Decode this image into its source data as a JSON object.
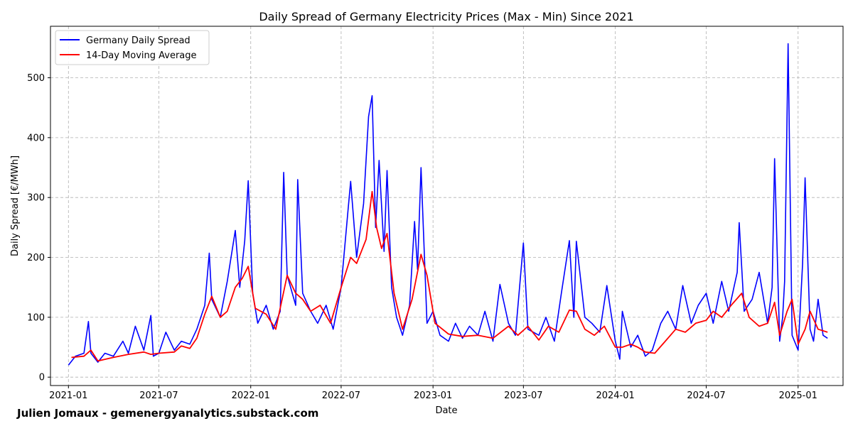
{
  "chart_data": {
    "type": "line",
    "title": "Daily Spread of Germany Electricity Prices (Max - Min) Since 2021",
    "xlabel": "Date",
    "ylabel": "Daily Spread [€/MWh]",
    "xlim": [
      "2020-11-26",
      "2025-04-01"
    ],
    "ylim": [
      -14,
      586
    ],
    "grid": true,
    "legend_position": "top-left",
    "x_ticks": [
      {
        "date": "2021-01-01",
        "label": "2021-01"
      },
      {
        "date": "2021-07-01",
        "label": "2021-07"
      },
      {
        "date": "2022-01-01",
        "label": "2022-01"
      },
      {
        "date": "2022-07-01",
        "label": "2022-07"
      },
      {
        "date": "2023-01-01",
        "label": "2023-01"
      },
      {
        "date": "2023-07-01",
        "label": "2023-07"
      },
      {
        "date": "2024-01-01",
        "label": "2024-01"
      },
      {
        "date": "2024-07-01",
        "label": "2024-07"
      },
      {
        "date": "2025-01-01",
        "label": "2025-01"
      }
    ],
    "y_ticks": [
      0,
      100,
      200,
      300,
      400,
      500
    ],
    "series": [
      {
        "name": "Germany Daily Spread",
        "color": "#0000ff",
        "points": [
          [
            "2021-01-01",
            20
          ],
          [
            "2021-01-15",
            35
          ],
          [
            "2021-02-01",
            40
          ],
          [
            "2021-02-10",
            93
          ],
          [
            "2021-02-15",
            40
          ],
          [
            "2021-03-01",
            25
          ],
          [
            "2021-03-15",
            40
          ],
          [
            "2021-04-01",
            35
          ],
          [
            "2021-04-20",
            60
          ],
          [
            "2021-05-01",
            40
          ],
          [
            "2021-05-15",
            85
          ],
          [
            "2021-06-01",
            45
          ],
          [
            "2021-06-15",
            103
          ],
          [
            "2021-06-20",
            35
          ],
          [
            "2021-07-01",
            40
          ],
          [
            "2021-07-15",
            75
          ],
          [
            "2021-08-01",
            45
          ],
          [
            "2021-08-15",
            60
          ],
          [
            "2021-09-01",
            55
          ],
          [
            "2021-09-15",
            80
          ],
          [
            "2021-10-01",
            120
          ],
          [
            "2021-10-10",
            207
          ],
          [
            "2021-10-15",
            130
          ],
          [
            "2021-11-01",
            100
          ],
          [
            "2021-11-15",
            160
          ],
          [
            "2021-12-01",
            245
          ],
          [
            "2021-12-10",
            150
          ],
          [
            "2021-12-20",
            228
          ],
          [
            "2021-12-27",
            328
          ],
          [
            "2022-01-05",
            140
          ],
          [
            "2022-01-15",
            90
          ],
          [
            "2022-02-01",
            120
          ],
          [
            "2022-02-15",
            80
          ],
          [
            "2022-03-01",
            110
          ],
          [
            "2022-03-08",
            342
          ],
          [
            "2022-03-15",
            170
          ],
          [
            "2022-04-01",
            120
          ],
          [
            "2022-04-05",
            330
          ],
          [
            "2022-04-15",
            140
          ],
          [
            "2022-05-01",
            110
          ],
          [
            "2022-05-15",
            90
          ],
          [
            "2022-06-01",
            120
          ],
          [
            "2022-06-15",
            80
          ],
          [
            "2022-07-01",
            150
          ],
          [
            "2022-07-15",
            280
          ],
          [
            "2022-07-20",
            327
          ],
          [
            "2022-08-01",
            200
          ],
          [
            "2022-08-15",
            290
          ],
          [
            "2022-08-25",
            435
          ],
          [
            "2022-09-01",
            470
          ],
          [
            "2022-09-08",
            250
          ],
          [
            "2022-09-15",
            362
          ],
          [
            "2022-09-25",
            210
          ],
          [
            "2022-10-01",
            345
          ],
          [
            "2022-10-10",
            150
          ],
          [
            "2022-10-20",
            100
          ],
          [
            "2022-11-01",
            70
          ],
          [
            "2022-11-15",
            120
          ],
          [
            "2022-11-25",
            260
          ],
          [
            "2022-12-01",
            180
          ],
          [
            "2022-12-08",
            350
          ],
          [
            "2022-12-12",
            263
          ],
          [
            "2022-12-20",
            90
          ],
          [
            "2023-01-01",
            110
          ],
          [
            "2023-01-15",
            70
          ],
          [
            "2023-02-01",
            60
          ],
          [
            "2023-02-15",
            90
          ],
          [
            "2023-03-01",
            65
          ],
          [
            "2023-03-15",
            85
          ],
          [
            "2023-04-01",
            70
          ],
          [
            "2023-04-15",
            110
          ],
          [
            "2023-05-01",
            60
          ],
          [
            "2023-05-15",
            155
          ],
          [
            "2023-06-01",
            90
          ],
          [
            "2023-06-15",
            70
          ],
          [
            "2023-07-01",
            224
          ],
          [
            "2023-07-10",
            80
          ],
          [
            "2023-08-01",
            70
          ],
          [
            "2023-08-15",
            100
          ],
          [
            "2023-09-01",
            60
          ],
          [
            "2023-09-15",
            140
          ],
          [
            "2023-10-01",
            228
          ],
          [
            "2023-10-10",
            100
          ],
          [
            "2023-10-15",
            227
          ],
          [
            "2023-11-01",
            100
          ],
          [
            "2023-11-15",
            90
          ],
          [
            "2023-12-01",
            75
          ],
          [
            "2023-12-15",
            153
          ],
          [
            "2024-01-01",
            60
          ],
          [
            "2024-01-10",
            30
          ],
          [
            "2024-01-15",
            110
          ],
          [
            "2024-02-01",
            50
          ],
          [
            "2024-02-15",
            70
          ],
          [
            "2024-03-01",
            35
          ],
          [
            "2024-03-15",
            45
          ],
          [
            "2024-04-01",
            90
          ],
          [
            "2024-04-15",
            110
          ],
          [
            "2024-05-01",
            80
          ],
          [
            "2024-05-15",
            153
          ],
          [
            "2024-06-01",
            90
          ],
          [
            "2024-06-15",
            120
          ],
          [
            "2024-07-01",
            140
          ],
          [
            "2024-07-15",
            90
          ],
          [
            "2024-08-01",
            160
          ],
          [
            "2024-08-15",
            110
          ],
          [
            "2024-09-01",
            175
          ],
          [
            "2024-09-05",
            258
          ],
          [
            "2024-09-15",
            110
          ],
          [
            "2024-10-01",
            130
          ],
          [
            "2024-10-15",
            175
          ],
          [
            "2024-11-01",
            90
          ],
          [
            "2024-11-10",
            150
          ],
          [
            "2024-11-15",
            365
          ],
          [
            "2024-11-25",
            60
          ],
          [
            "2024-12-01",
            100
          ],
          [
            "2024-12-05",
            160
          ],
          [
            "2024-12-12",
            557
          ],
          [
            "2024-12-20",
            70
          ],
          [
            "2025-01-01",
            45
          ],
          [
            "2025-01-10",
            190
          ],
          [
            "2025-01-15",
            333
          ],
          [
            "2025-01-25",
            80
          ],
          [
            "2025-02-01",
            60
          ],
          [
            "2025-02-10",
            130
          ],
          [
            "2025-02-20",
            70
          ],
          [
            "2025-03-01",
            65
          ]
        ]
      },
      {
        "name": "14-Day Moving Average",
        "color": "#ff0000",
        "points": [
          [
            "2021-01-07",
            33
          ],
          [
            "2021-02-01",
            35
          ],
          [
            "2021-02-15",
            45
          ],
          [
            "2021-03-01",
            27
          ],
          [
            "2021-04-01",
            33
          ],
          [
            "2021-05-01",
            38
          ],
          [
            "2021-06-01",
            42
          ],
          [
            "2021-06-15",
            38
          ],
          [
            "2021-07-01",
            40
          ],
          [
            "2021-08-01",
            42
          ],
          [
            "2021-08-15",
            52
          ],
          [
            "2021-09-01",
            48
          ],
          [
            "2021-09-15",
            65
          ],
          [
            "2021-10-01",
            105
          ],
          [
            "2021-10-15",
            135
          ],
          [
            "2021-11-01",
            100
          ],
          [
            "2021-11-15",
            110
          ],
          [
            "2021-12-01",
            150
          ],
          [
            "2021-12-15",
            165
          ],
          [
            "2021-12-27",
            185
          ],
          [
            "2022-01-10",
            115
          ],
          [
            "2022-02-01",
            105
          ],
          [
            "2022-02-20",
            80
          ],
          [
            "2022-03-15",
            170
          ],
          [
            "2022-04-01",
            140
          ],
          [
            "2022-04-15",
            130
          ],
          [
            "2022-05-01",
            110
          ],
          [
            "2022-05-20",
            120
          ],
          [
            "2022-06-10",
            90
          ],
          [
            "2022-07-01",
            150
          ],
          [
            "2022-07-20",
            200
          ],
          [
            "2022-08-01",
            190
          ],
          [
            "2022-08-20",
            230
          ],
          [
            "2022-09-01",
            310
          ],
          [
            "2022-09-10",
            250
          ],
          [
            "2022-09-20",
            215
          ],
          [
            "2022-10-01",
            240
          ],
          [
            "2022-10-15",
            140
          ],
          [
            "2022-11-01",
            80
          ],
          [
            "2022-11-20",
            130
          ],
          [
            "2022-12-08",
            205
          ],
          [
            "2022-12-20",
            170
          ],
          [
            "2023-01-05",
            90
          ],
          [
            "2023-02-01",
            72
          ],
          [
            "2023-03-01",
            68
          ],
          [
            "2023-04-01",
            70
          ],
          [
            "2023-05-01",
            65
          ],
          [
            "2023-06-01",
            85
          ],
          [
            "2023-06-20",
            70
          ],
          [
            "2023-07-10",
            85
          ],
          [
            "2023-08-01",
            62
          ],
          [
            "2023-08-20",
            85
          ],
          [
            "2023-09-10",
            75
          ],
          [
            "2023-10-01",
            112
          ],
          [
            "2023-10-15",
            110
          ],
          [
            "2023-11-01",
            80
          ],
          [
            "2023-11-20",
            70
          ],
          [
            "2023-12-10",
            85
          ],
          [
            "2024-01-01",
            50
          ],
          [
            "2024-01-15",
            50
          ],
          [
            "2024-02-01",
            55
          ],
          [
            "2024-02-15",
            50
          ],
          [
            "2024-03-01",
            42
          ],
          [
            "2024-03-20",
            40
          ],
          [
            "2024-04-10",
            60
          ],
          [
            "2024-05-01",
            80
          ],
          [
            "2024-05-20",
            75
          ],
          [
            "2024-06-10",
            90
          ],
          [
            "2024-07-01",
            95
          ],
          [
            "2024-07-15",
            110
          ],
          [
            "2024-08-01",
            100
          ],
          [
            "2024-08-20",
            120
          ],
          [
            "2024-09-10",
            140
          ],
          [
            "2024-09-25",
            100
          ],
          [
            "2024-10-15",
            85
          ],
          [
            "2024-11-01",
            90
          ],
          [
            "2024-11-15",
            125
          ],
          [
            "2024-11-25",
            70
          ],
          [
            "2024-12-10",
            110
          ],
          [
            "2024-12-20",
            130
          ],
          [
            "2025-01-01",
            55
          ],
          [
            "2025-01-15",
            80
          ],
          [
            "2025-01-25",
            110
          ],
          [
            "2025-02-10",
            80
          ],
          [
            "2025-03-01",
            75
          ]
        ]
      }
    ]
  },
  "footer": {
    "credit": "Julien Jomaux - gemenergyanalytics.substack.com"
  }
}
